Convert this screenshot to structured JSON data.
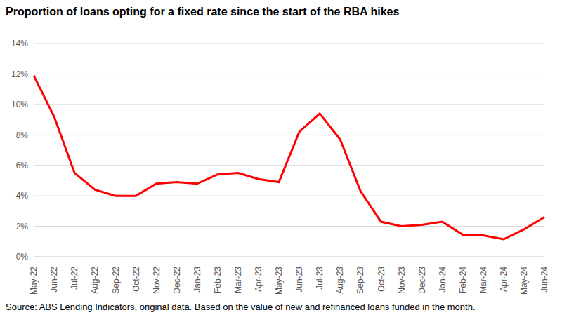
{
  "chart_data": {
    "type": "line",
    "title": "Proportion of loans opting for a fixed rate since the start of the RBA hikes",
    "source": "Source: ABS Lending Indicators, original data. Based on the value of new and refinanced loans funded in the month.",
    "categories": [
      "May-22",
      "Jun-22",
      "Jul-22",
      "Aug-22",
      "Sep-22",
      "Oct-22",
      "Nov-22",
      "Dec-22",
      "Jan-23",
      "Feb-23",
      "Mar-23",
      "Apr-23",
      "May-23",
      "Jun-23",
      "Jul-23",
      "Aug-23",
      "Sep-23",
      "Oct-23",
      "Nov-23",
      "Dec-23",
      "Jan-24",
      "Feb-24",
      "Mar-24",
      "Apr-24",
      "May-24",
      "Jun-24"
    ],
    "values": [
      11.9,
      9.2,
      5.5,
      4.4,
      4.0,
      4.0,
      4.8,
      4.9,
      4.8,
      5.4,
      5.5,
      5.1,
      4.9,
      8.2,
      9.4,
      7.7,
      4.3,
      2.3,
      2.0,
      2.1,
      2.3,
      1.45,
      1.4,
      1.15,
      1.8,
      2.6
    ],
    "color": "#ff0000",
    "ylim": [
      0,
      14
    ],
    "yticks": [
      {
        "value": 0,
        "label": "0%"
      },
      {
        "value": 2,
        "label": "2%"
      },
      {
        "value": 4,
        "label": "4%"
      },
      {
        "value": 6,
        "label": "6%"
      },
      {
        "value": 8,
        "label": "8%"
      },
      {
        "value": 10,
        "label": "10%"
      },
      {
        "value": 12,
        "label": "12%"
      },
      {
        "value": 14,
        "label": "14%"
      }
    ],
    "grid": true
  }
}
